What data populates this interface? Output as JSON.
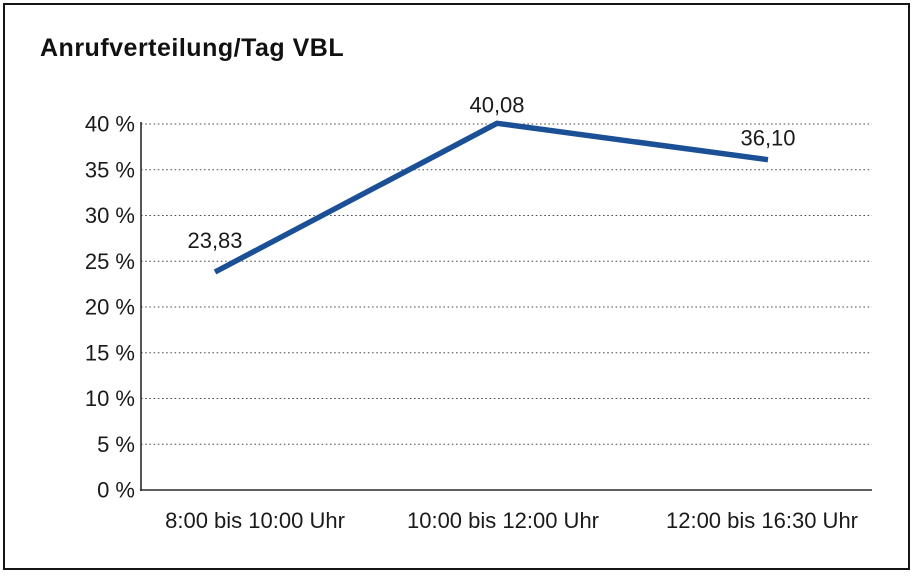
{
  "chart_data": {
    "type": "line",
    "title": "Anrufverteilung/Tag VBL",
    "categories": [
      "8:00 bis 10:00 Uhr",
      "10:00 bis 12:00 Uhr",
      "12:00 bis 16:30 Uhr"
    ],
    "series": [
      {
        "name": "Anrufverteilung",
        "values": [
          23.83,
          40.08,
          36.1
        ],
        "data_labels": [
          "23,83",
          "40,08",
          "36,10"
        ]
      }
    ],
    "xlabel": "",
    "ylabel": "",
    "ylim": [
      0,
      40
    ],
    "y_ticks": [
      {
        "value": 0,
        "label": "0 %"
      },
      {
        "value": 5,
        "label": "5 %"
      },
      {
        "value": 10,
        "label": "10 %"
      },
      {
        "value": 15,
        "label": "15 %"
      },
      {
        "value": 20,
        "label": "20 %"
      },
      {
        "value": 25,
        "label": "25 %"
      },
      {
        "value": 30,
        "label": "30 %"
      },
      {
        "value": 35,
        "label": "35 %"
      },
      {
        "value": 40,
        "label": "40 %"
      }
    ],
    "grid": "horizontal-dotted",
    "legend_position": "none",
    "colors": {
      "line": "#1B5096",
      "text": "#1A1A1A",
      "axis": "#2B2B2B",
      "gridline": "#4D4D4D",
      "border": "#161616",
      "background": "#FFFFFF"
    }
  }
}
